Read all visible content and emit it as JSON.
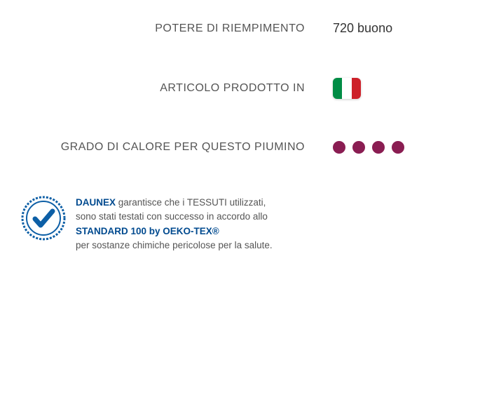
{
  "specs": {
    "fill_power": {
      "label": "POTERE DI RIEMPIMENTO",
      "value": "720 buono"
    },
    "made_in": {
      "label": "ARTICOLO PRODOTTO IN",
      "flag_colors": [
        "#008C45",
        "#FFFFFF",
        "#CD212A"
      ]
    },
    "warmth": {
      "label": "GRADO DI CALORE PER QUESTO PIUMINO",
      "count": 4,
      "dot_color": "#8a1d52"
    }
  },
  "certification": {
    "brand": "DAUNEX",
    "brand_color": "#004a8f",
    "line1_rest": " garantisce che i TESSUTI  utilizzati,",
    "line2": "sono stati testati con successo in accordo allo",
    "standard": "STANDARD 100 by OEKO-TEX®",
    "standard_color": "#004a8f",
    "line4": "per sostanze chimiche pericolose per la salute.",
    "badge_color": "#0d5fa6"
  },
  "colors": {
    "label_text": "#555555",
    "value_text": "#333333",
    "body_text": "#555555"
  }
}
